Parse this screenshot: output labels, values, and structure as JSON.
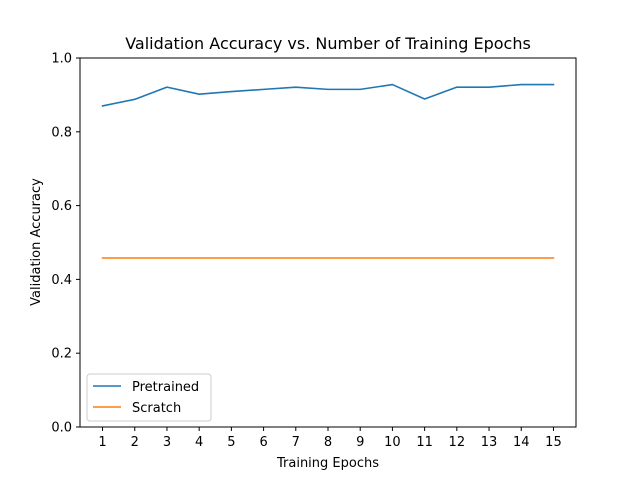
{
  "chart_data": {
    "type": "line",
    "title": "Validation Accuracy vs. Number of Training Epochs",
    "xlabel": "Training Epochs",
    "ylabel": "Validation Accuracy",
    "x": [
      1,
      2,
      3,
      4,
      5,
      6,
      7,
      8,
      9,
      10,
      11,
      12,
      13,
      14,
      15
    ],
    "ylim": [
      0.0,
      1.0
    ],
    "yticks": [
      "0.0",
      "0.2",
      "0.4",
      "0.6",
      "0.8",
      "1.0"
    ],
    "xticks": [
      "1",
      "2",
      "3",
      "4",
      "5",
      "6",
      "7",
      "8",
      "9",
      "10",
      "11",
      "12",
      "13",
      "14",
      "15"
    ],
    "grid": false,
    "legend_position": "lower-left",
    "series": [
      {
        "name": "Pretrained",
        "color": "#1f77b4",
        "values": [
          0.87,
          0.888,
          0.921,
          0.902,
          0.909,
          0.915,
          0.921,
          0.915,
          0.915,
          0.928,
          0.889,
          0.921,
          0.921,
          0.928,
          0.928
        ]
      },
      {
        "name": "Scratch",
        "color": "#ff7f0e",
        "values": [
          0.458,
          0.458,
          0.458,
          0.458,
          0.458,
          0.458,
          0.458,
          0.458,
          0.458,
          0.458,
          0.458,
          0.458,
          0.458,
          0.458,
          0.458
        ]
      }
    ]
  }
}
